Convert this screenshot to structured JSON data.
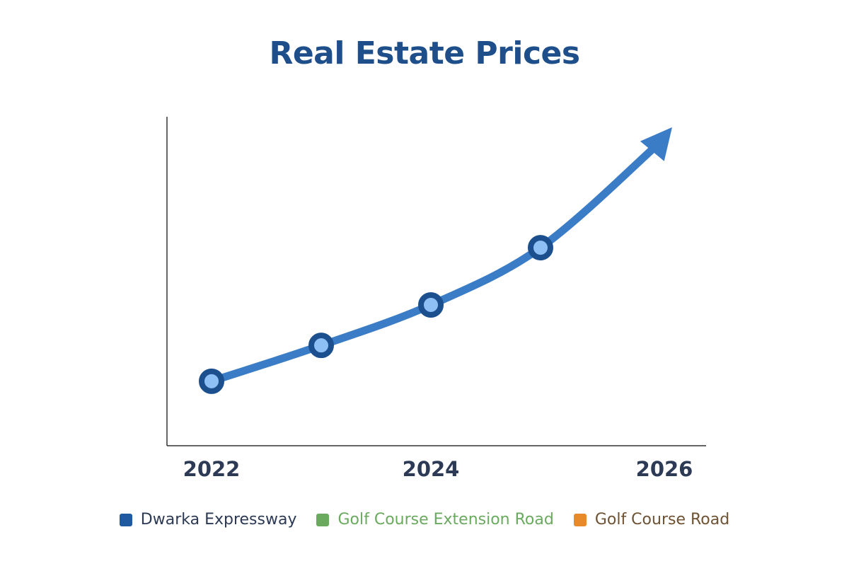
{
  "chart_data": {
    "type": "line",
    "title": "Real Estate Prices",
    "xlabel": "",
    "ylabel": "",
    "x": [
      2022,
      2023,
      2024,
      2025
    ],
    "x_ticks": [
      "2022",
      "2024",
      "2026"
    ],
    "xlim": [
      2022,
      2026
    ],
    "ylim": [
      0,
      100
    ],
    "series": [
      {
        "values": [
          19.6,
          30.5,
          42.8,
          60.2
        ],
        "color": "#3a7cc6",
        "marker_color": "#1b4f8e",
        "marker_fill": "#8fc0f5",
        "trend_arrow_to": [
          2026.2,
          96.8
        ]
      }
    ],
    "grid": false,
    "y_ticks_shown": false,
    "legend": {
      "placement": "bottom",
      "items": [
        {
          "label": "Dwarka Expressway",
          "color": "#1f5aa0",
          "text_color": "#2d3a55"
        },
        {
          "label": "Golf Course Extension Road",
          "color": "#6aaa5f",
          "text_color": "#6aaa5f"
        },
        {
          "label": "Golf Course Road",
          "color": "#e8892a",
          "text_color": "#6e5233"
        }
      ]
    }
  }
}
